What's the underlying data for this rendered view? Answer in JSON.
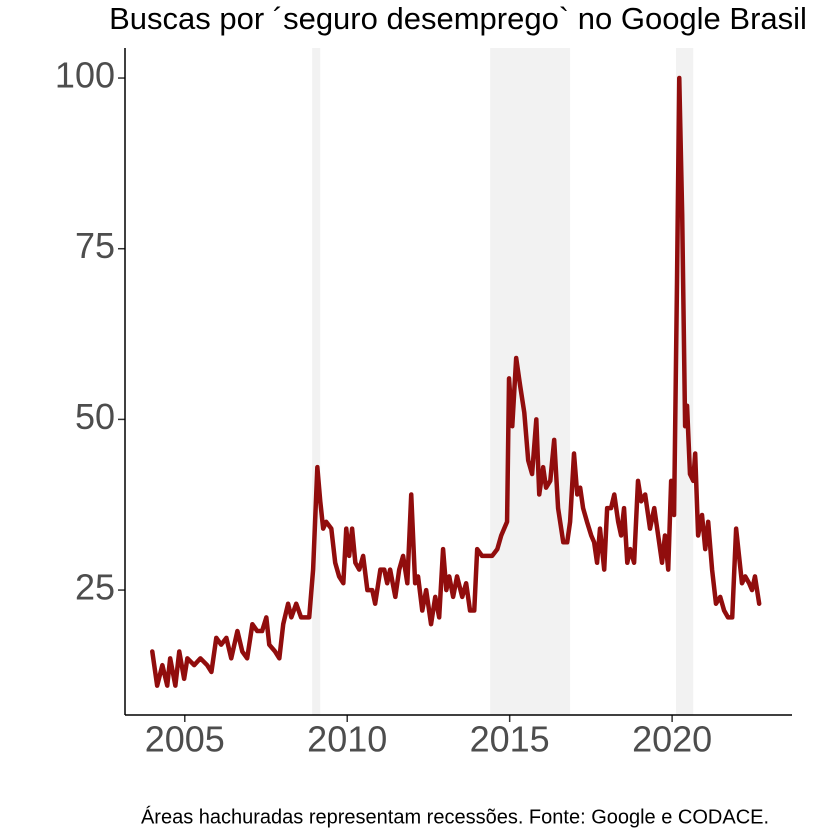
{
  "chart_data": {
    "type": "line",
    "title": "Buscas por ´seguro desemprego` no Google Brasil",
    "caption": "Áreas hachuradas representam recessões. Fonte: Google e CODACE.",
    "color": "#8b0000",
    "recession_color": "#f2f2f2",
    "recessions": [
      [
        2008.92,
        2009.17
      ],
      [
        2014.4,
        2016.86
      ],
      [
        2020.12,
        2020.65
      ]
    ],
    "xlim": [
      2003.16,
      2023.69
    ],
    "ylim": [
      6.7,
      104.4
    ],
    "xticks": [
      2005,
      2010,
      2015,
      2020
    ],
    "yticks": [
      25,
      50,
      75,
      100
    ],
    "x": [
      2004.0,
      2004.15,
      2004.31,
      2004.46,
      2004.55,
      2004.71,
      2004.83,
      2004.98,
      2005.08,
      2005.29,
      2005.48,
      2005.69,
      2005.82,
      2005.97,
      2006.12,
      2006.28,
      2006.43,
      2006.62,
      2006.77,
      2006.92,
      2007.08,
      2007.23,
      2007.38,
      2007.51,
      2007.6,
      2007.78,
      2007.91,
      2008.03,
      2008.18,
      2008.28,
      2008.43,
      2008.58,
      2008.83,
      2008.95,
      2009.08,
      2009.17,
      2009.26,
      2009.35,
      2009.51,
      2009.63,
      2009.75,
      2009.88,
      2009.97,
      2010.06,
      2010.15,
      2010.25,
      2010.37,
      2010.49,
      2010.62,
      2010.77,
      2010.86,
      2011.02,
      2011.14,
      2011.23,
      2011.32,
      2011.48,
      2011.6,
      2011.72,
      2011.85,
      2011.97,
      2012.09,
      2012.18,
      2012.31,
      2012.43,
      2012.58,
      2012.71,
      2012.83,
      2012.95,
      2013.05,
      2013.14,
      2013.26,
      2013.38,
      2013.54,
      2013.66,
      2013.78,
      2013.91,
      2014.0,
      2014.15,
      2014.31,
      2014.46,
      2014.62,
      2014.74,
      2014.92,
      2014.98,
      2015.08,
      2015.2,
      2015.32,
      2015.45,
      2015.57,
      2015.69,
      2015.82,
      2015.91,
      2016.03,
      2016.12,
      2016.25,
      2016.37,
      2016.49,
      2016.65,
      2016.77,
      2016.86,
      2016.98,
      2017.08,
      2017.17,
      2017.26,
      2017.38,
      2017.51,
      2017.6,
      2017.69,
      2017.78,
      2017.91,
      2018.0,
      2018.12,
      2018.22,
      2018.34,
      2018.43,
      2018.52,
      2018.62,
      2018.71,
      2018.83,
      2018.95,
      2019.05,
      2019.17,
      2019.32,
      2019.45,
      2019.57,
      2019.69,
      2019.78,
      2019.88,
      2019.97,
      2020.06,
      2020.15,
      2020.22,
      2020.31,
      2020.4,
      2020.46,
      2020.55,
      2020.65,
      2020.71,
      2020.8,
      2020.92,
      2021.02,
      2021.11,
      2021.23,
      2021.35,
      2021.48,
      2021.6,
      2021.72,
      2021.85,
      2021.97,
      2022.06,
      2022.15,
      2022.25,
      2022.37,
      2022.46,
      2022.55,
      2022.68
    ],
    "values": [
      16,
      11,
      14,
      11,
      15,
      11,
      16,
      12,
      15,
      14,
      15,
      14,
      13,
      18,
      17,
      18,
      15,
      19,
      16,
      15,
      20,
      19,
      19,
      21,
      17,
      16,
      15,
      20,
      23,
      21,
      23,
      21,
      21,
      28,
      43,
      38,
      34,
      35,
      34,
      29,
      27,
      26,
      34,
      30,
      34,
      29,
      28,
      30,
      25,
      25,
      23,
      28,
      28,
      26,
      28,
      24,
      28,
      30,
      26,
      39,
      26,
      27,
      22,
      25,
      20,
      24,
      21,
      31,
      25,
      27,
      24,
      27,
      24,
      26,
      22,
      22,
      31,
      30,
      30,
      30,
      31,
      33,
      35,
      56,
      49,
      59,
      55,
      51,
      44,
      42,
      50,
      39,
      43,
      40,
      41,
      47,
      37,
      32,
      32,
      35,
      45,
      39,
      40,
      37,
      35,
      33,
      32,
      29,
      34,
      28,
      37,
      37,
      39,
      35,
      33,
      37,
      29,
      31,
      29,
      41,
      38,
      39,
      34,
      37,
      33,
      29,
      33,
      28,
      41,
      36,
      70,
      100,
      80,
      49,
      52,
      42,
      41,
      45,
      33,
      36,
      31,
      35,
      28,
      23,
      24,
      22,
      21,
      21,
      34,
      30,
      26,
      27,
      26,
      25,
      27,
      23
    ]
  }
}
